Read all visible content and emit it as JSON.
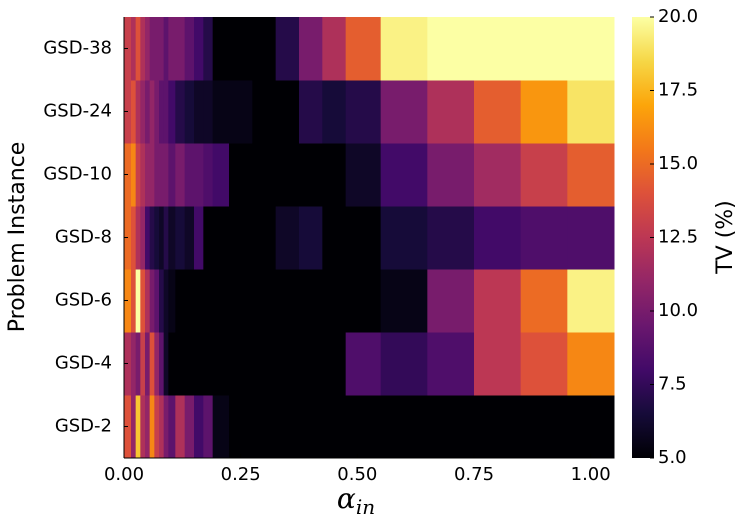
{
  "chart_data": {
    "type": "heatmap",
    "x_label": {
      "symbol": "α",
      "subscript": "in"
    },
    "y_label": "Problem Instance",
    "colorbar_label": "TV (%)",
    "colormap": "inferno",
    "clim": [
      5,
      20
    ],
    "cticks": [
      {
        "value": 5,
        "label": "5.0"
      },
      {
        "value": 7.5,
        "label": "7.5"
      },
      {
        "value": 10,
        "label": "10.0"
      },
      {
        "value": 12.5,
        "label": "12.5"
      },
      {
        "value": 15,
        "label": "15.0"
      },
      {
        "value": 17.5,
        "label": "17.5"
      },
      {
        "value": 20,
        "label": "20.0"
      }
    ],
    "x": [
      0.01,
      0.02,
      0.03,
      0.04,
      0.05,
      0.06,
      0.07,
      0.08,
      0.09,
      0.1,
      0.12,
      0.14,
      0.16,
      0.18,
      0.2,
      0.25,
      0.3,
      0.35,
      0.4,
      0.45,
      0.5,
      0.6,
      0.7,
      0.8,
      0.9,
      1.0
    ],
    "xlim": [
      0,
      1.05
    ],
    "xticks": [
      {
        "value": 0,
        "label": "0.00"
      },
      {
        "value": 0.25,
        "label": "0.25"
      },
      {
        "value": 0.5,
        "label": "0.50"
      },
      {
        "value": 0.75,
        "label": "0.75"
      },
      {
        "value": 1,
        "label": "1.00"
      }
    ],
    "categories": [
      "GSD-2",
      "GSD-4",
      "GSD-6",
      "GSD-8",
      "GSD-10",
      "GSD-24",
      "GSD-38"
    ],
    "z": [
      [
        14,
        11,
        18,
        12,
        11,
        16,
        13,
        12,
        10,
        9,
        12,
        10,
        8,
        9,
        5.5,
        5,
        5,
        5,
        5,
        5,
        5,
        5,
        5,
        5,
        5,
        5
      ],
      [
        12,
        11,
        10,
        13,
        10,
        14,
        11,
        9,
        6,
        5,
        5,
        5,
        5,
        5,
        5,
        5,
        5,
        5,
        5,
        5,
        8.5,
        7.5,
        8.5,
        12.5,
        14,
        16
      ],
      [
        16,
        14,
        20,
        14,
        12,
        10,
        9,
        7,
        6,
        5.5,
        5,
        5,
        5,
        5,
        5,
        5,
        5,
        5,
        5,
        5,
        5,
        5.5,
        10,
        12.5,
        15,
        19.5
      ],
      [
        15,
        14,
        12,
        11,
        8,
        7,
        6.5,
        6,
        7,
        6,
        6.5,
        6,
        8,
        5,
        5,
        5,
        5,
        6,
        6.5,
        5,
        5,
        6.5,
        7,
        8,
        8.5,
        8.5
      ],
      [
        15,
        16,
        13,
        12,
        11,
        11,
        10,
        10,
        10,
        9,
        10,
        9,
        9,
        8.5,
        8,
        5,
        5,
        5,
        5,
        5,
        6,
        8,
        10,
        11.5,
        13,
        14.5
      ],
      [
        13,
        14,
        12,
        11,
        10,
        11,
        10,
        9,
        9,
        8,
        7,
        6.5,
        6,
        6,
        5.5,
        5.5,
        5,
        5,
        7,
        6.5,
        7,
        10,
        12,
        14.5,
        16.5,
        19
      ],
      [
        13,
        12,
        14,
        12,
        11,
        10,
        10,
        10,
        9,
        10,
        10,
        9,
        8,
        7,
        5,
        5,
        5,
        7,
        10,
        12,
        14.5,
        19.5,
        20,
        20,
        20,
        20
      ]
    ]
  }
}
